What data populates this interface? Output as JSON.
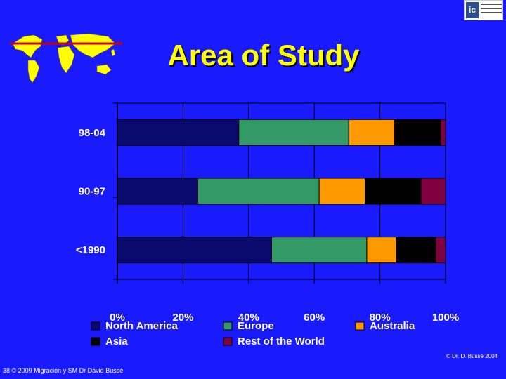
{
  "slide": {
    "title": "Area of Study",
    "footer_left": "38 © 2009 Migración y SM Dr David Bussé",
    "footer_right": "© Dr. D. Bussé 2004"
  },
  "colors": {
    "background": "#1a1aff",
    "title": "#ffff00"
  },
  "icons": [
    "world-map-icon",
    "university-logo-icon"
  ],
  "chart_data": {
    "type": "bar",
    "orientation": "horizontal",
    "stacked": true,
    "percent": true,
    "categories": [
      "98-04",
      "90-97",
      "<1990"
    ],
    "xlim": [
      0,
      100
    ],
    "xticks": [
      "0%",
      "20%",
      "40%",
      "60%",
      "80%",
      "100%"
    ],
    "grid": true,
    "legend_position": "bottom",
    "series": [
      {
        "name": "North America",
        "color": "#0a0a6e",
        "values": [
          37,
          24.5,
          47
        ]
      },
      {
        "name": "Europe",
        "color": "#339966",
        "values": [
          33.5,
          37,
          29
        ]
      },
      {
        "name": "Australia",
        "color": "#ff9900",
        "values": [
          14,
          14,
          9
        ]
      },
      {
        "name": "Asia",
        "color": "#000000",
        "values": [
          14,
          17,
          12
        ]
      },
      {
        "name": "Rest of the World",
        "color": "#800040",
        "values": [
          1.5,
          7.5,
          3
        ]
      }
    ]
  }
}
